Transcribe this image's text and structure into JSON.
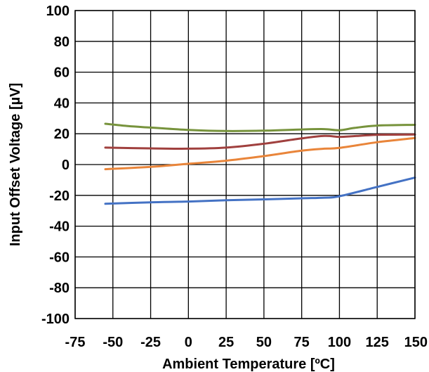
{
  "chart_data": {
    "type": "line",
    "title": "",
    "xlabel": "Ambient Temperature [ºC]",
    "ylabel": "Input Offset Voltage [µV]",
    "xlim": [
      -75,
      150
    ],
    "ylim": [
      -100,
      100
    ],
    "xticks": [
      -75,
      -50,
      -25,
      0,
      25,
      50,
      75,
      100,
      125,
      150
    ],
    "yticks": [
      100,
      80,
      60,
      40,
      20,
      0,
      -20,
      -40,
      -60,
      -80,
      -100
    ],
    "grid": true,
    "legend": "none",
    "series": [
      {
        "color": "#77933C",
        "x": [
          -55,
          -40,
          -25,
          0,
          25,
          50,
          75,
          90,
          100,
          110,
          125,
          150
        ],
        "y": [
          26.5,
          25,
          24,
          22.5,
          21.8,
          22,
          22.8,
          23,
          22.3,
          23.8,
          25.3,
          25.8
        ]
      },
      {
        "color": "#A0403E",
        "x": [
          -55,
          -25,
          0,
          25,
          50,
          75,
          90,
          100,
          110,
          125,
          150
        ],
        "y": [
          11,
          10.5,
          10.3,
          11,
          13.5,
          17,
          18.6,
          18,
          18.5,
          19.3,
          19.5
        ]
      },
      {
        "color": "#E9853A",
        "x": [
          -55,
          -25,
          0,
          25,
          50,
          75,
          90,
          100,
          125,
          150
        ],
        "y": [
          -3,
          -1.5,
          0.5,
          2.5,
          5.5,
          9,
          10.3,
          10.8,
          14.5,
          17.2
        ]
      },
      {
        "color": "#4472C4",
        "x": [
          -55,
          -25,
          0,
          25,
          50,
          75,
          90,
          100,
          125,
          150
        ],
        "y": [
          -25.5,
          -24.5,
          -24,
          -23.2,
          -22.6,
          -21.9,
          -21.5,
          -20.6,
          -14.5,
          -8.5
        ]
      }
    ]
  }
}
